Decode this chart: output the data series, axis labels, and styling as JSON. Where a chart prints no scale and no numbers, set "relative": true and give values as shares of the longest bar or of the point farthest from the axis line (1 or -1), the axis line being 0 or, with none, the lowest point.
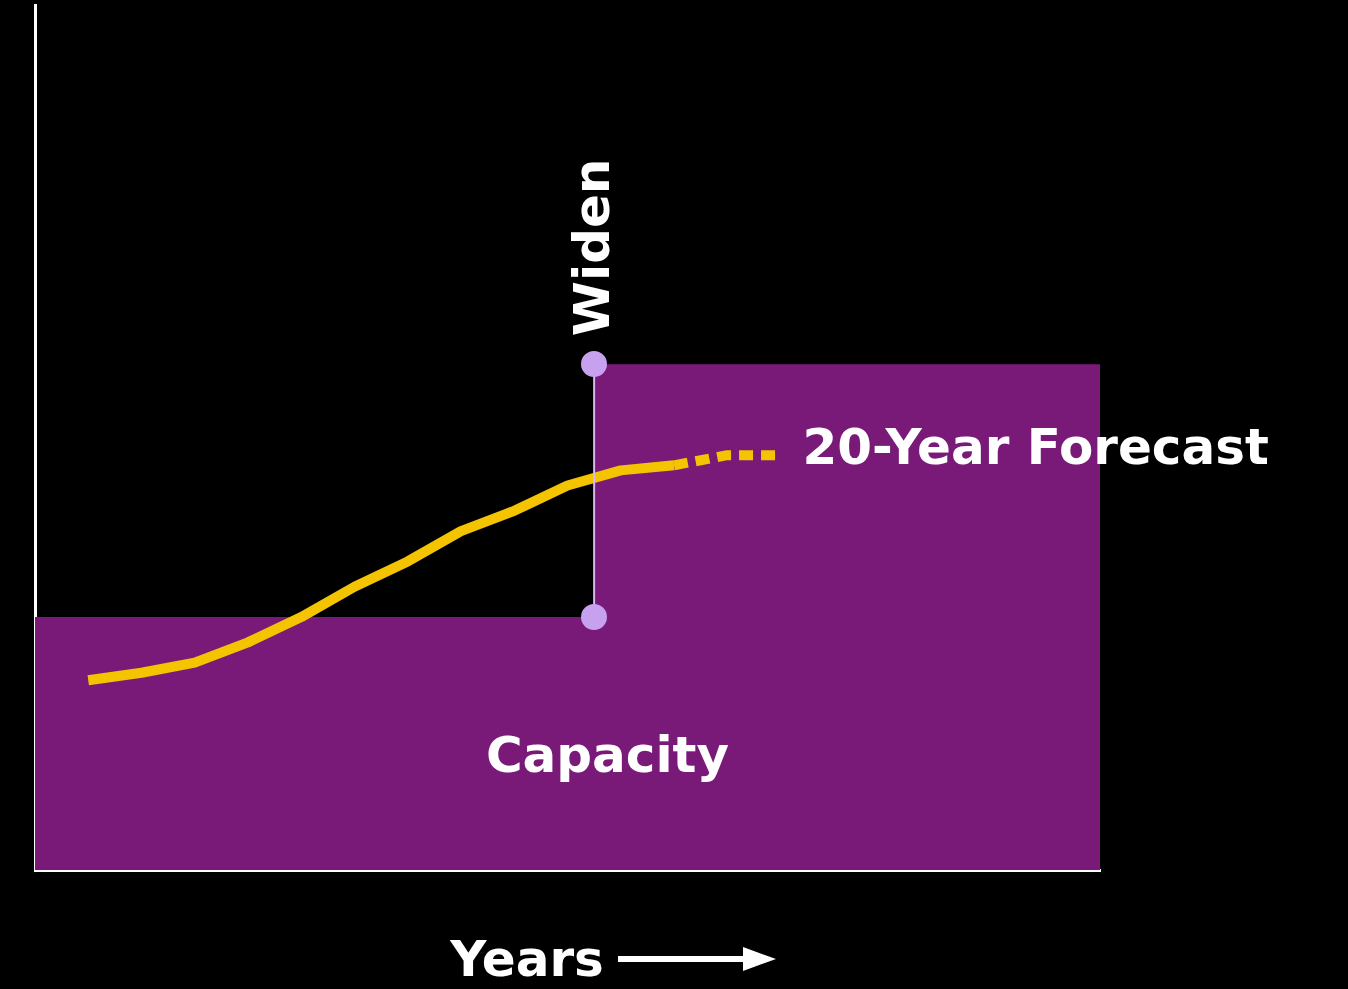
{
  "chart_data": {
    "type": "line",
    "relative": true,
    "xlabel": "Years",
    "legend": false,
    "categories": [
      null,
      null,
      null,
      null,
      null,
      null,
      null,
      null,
      null,
      null,
      null,
      null,
      null,
      null,
      null,
      null,
      null,
      null,
      null,
      null,
      null
    ],
    "series": [
      {
        "type": "area",
        "name": "Capacity",
        "color": "#7a1a78",
        "values": [
          0.5,
          0.5,
          0.5,
          0.5,
          0.5,
          0.5,
          0.5,
          0.5,
          0.5,
          0.5,
          0.5,
          1,
          1,
          1,
          1,
          1,
          1,
          1,
          1,
          1,
          1
        ]
      },
      {
        "color": "#f5c400",
        "line_style": "solid",
        "values": [
          null,
          0.375,
          0.39,
          0.41,
          0.45,
          0.5,
          0.56,
          0.61,
          0.67,
          0.71,
          0.76,
          0.79,
          0.8,
          null,
          null,
          null,
          null,
          null,
          null,
          null,
          null
        ]
      },
      {
        "name": "20-Year Forecast",
        "color": "#f5c400",
        "line_style": "dashed",
        "values": [
          null,
          null,
          null,
          null,
          null,
          null,
          null,
          null,
          null,
          null,
          null,
          null,
          0.8,
          0.82,
          0.82,
          null,
          null,
          null,
          null,
          null,
          null
        ]
      }
    ],
    "annotations": [
      "Widen"
    ]
  }
}
